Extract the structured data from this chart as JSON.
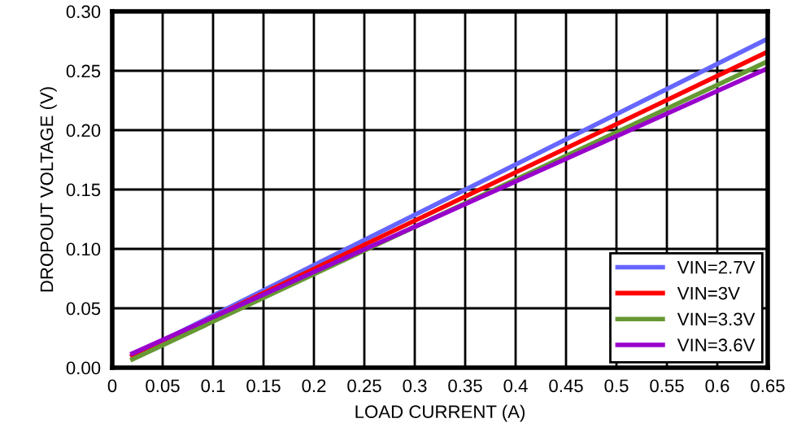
{
  "chart_data": {
    "type": "line",
    "xlabel": "LOAD CURRENT (A)",
    "ylabel": "DROPOUT VOLTAGE (V)",
    "x": [
      0.02,
      0.65
    ],
    "series": [
      {
        "name": "VIN=2.7V",
        "color": "#6666ff",
        "values": [
          0.01,
          0.277
        ]
      },
      {
        "name": "VIN=3V",
        "color": "#ff0000",
        "values": [
          0.01,
          0.266
        ]
      },
      {
        "name": "VIN=3.3V",
        "color": "#669933",
        "values": [
          0.007,
          0.258
        ]
      },
      {
        "name": "VIN=3.6V",
        "color": "#9900cc",
        "values": [
          0.012,
          0.252
        ]
      }
    ],
    "xlim": [
      0,
      0.65
    ],
    "ylim": [
      0,
      0.3
    ],
    "xticks": [
      0,
      0.05,
      0.1,
      0.15,
      0.2,
      0.25,
      0.3,
      0.35,
      0.4,
      0.45,
      0.5,
      0.55,
      0.6,
      0.65
    ],
    "yticks": [
      {
        "value": 0,
        "label": "0.00"
      },
      {
        "value": 0.05,
        "label": "0.05"
      },
      {
        "value": 0.1,
        "label": "0.10"
      },
      {
        "value": 0.15,
        "label": "0.15"
      },
      {
        "value": 0.2,
        "label": "0.20"
      },
      {
        "value": 0.25,
        "label": "0.25"
      },
      {
        "value": 0.3,
        "label": "0.30"
      }
    ],
    "grid": true,
    "legend": "bottom right",
    "marker": "none",
    "line_style": "solid"
  }
}
